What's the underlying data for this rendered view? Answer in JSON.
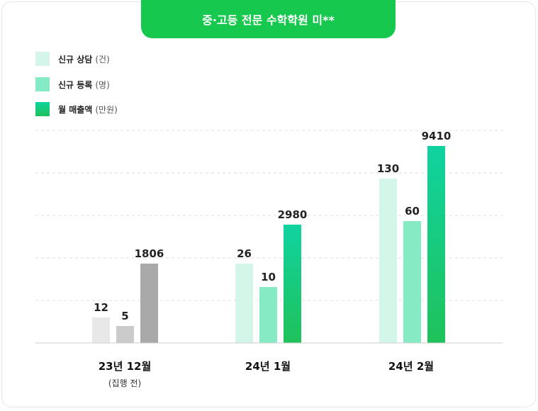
{
  "chart_data": {
    "type": "bar",
    "title": "중·고등 전문 수학학원 미**",
    "categories": [
      "23년 12월",
      "24년 1월",
      "24년 2월"
    ],
    "category_sublabels": [
      "(집행 전)",
      "",
      ""
    ],
    "legend": [
      {
        "label": "신규 상담",
        "unit": "(건)",
        "color": "#d3f6e8"
      },
      {
        "label": "신규 등록",
        "unit": "(명)",
        "color": "#84ebc4"
      },
      {
        "label": "월 매출액",
        "unit": "(만원)",
        "color": "#14c97a"
      }
    ],
    "series": [
      {
        "name": "신규 상담 (건)",
        "values": [
          12,
          26,
          130
        ]
      },
      {
        "name": "신규 등록 (명)",
        "values": [
          5,
          10,
          60
        ]
      },
      {
        "name": "월 매출액 (만원)",
        "values": [
          1806,
          2980,
          9410
        ]
      }
    ],
    "pre_campaign_colors": [
      "#e8e8e8",
      "#cbcbcb",
      "#a9a9a9"
    ],
    "grid": true,
    "legend_position": "top-left"
  }
}
